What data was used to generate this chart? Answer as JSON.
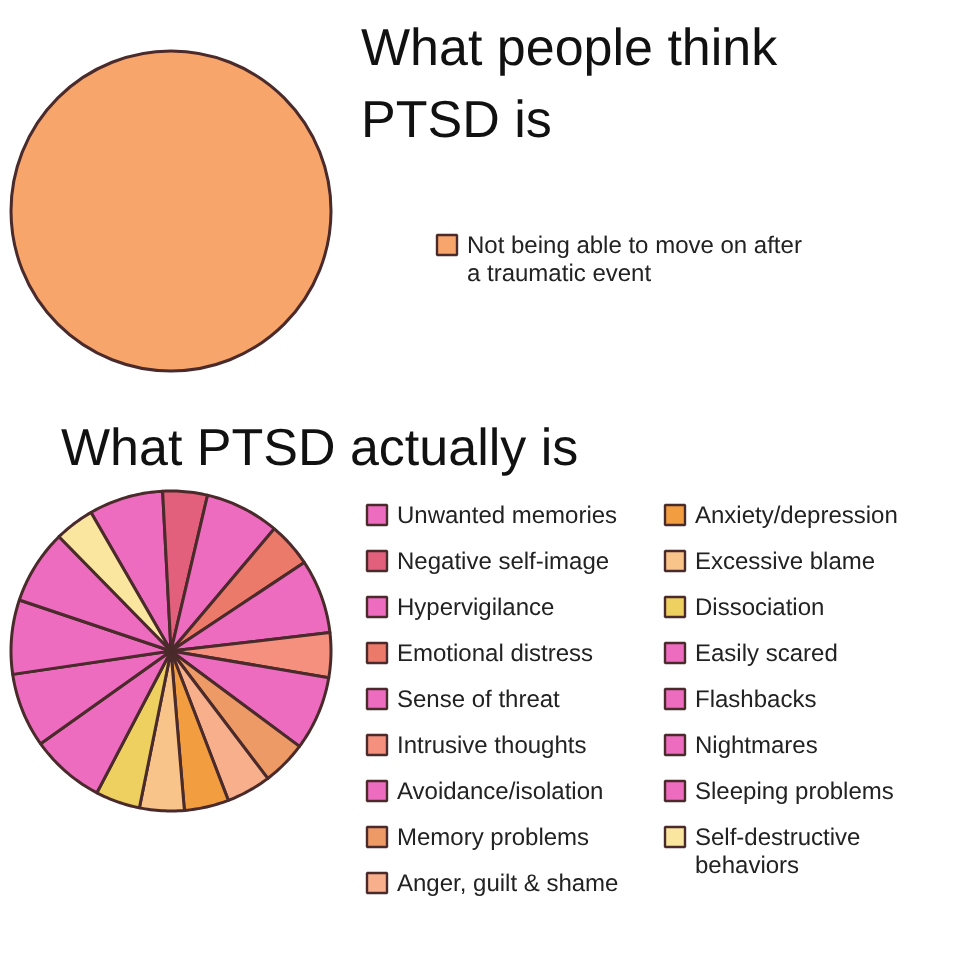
{
  "chart_data": [
    {
      "type": "pie",
      "title": "What people think\nPTSD is",
      "categories": [
        "Not being able to move on after\na traumatic event"
      ],
      "values": [
        100
      ],
      "colors": [
        "#f8a56c"
      ],
      "legend": "right"
    },
    {
      "type": "pie",
      "title": "What PTSD actually is",
      "categories": [
        "Unwanted memories",
        "Negative self-image",
        "Hypervigilance",
        "Emotional distress",
        "Sense of threat",
        "Intrusive thoughts",
        "Avoidance/isolation",
        "Memory problems",
        "Anger, guilt & shame",
        "Anxiety/depression",
        "Excessive blame",
        "Dissociation",
        "Easily scared",
        "Flashbacks",
        "Nightmares",
        "Sleeping problems",
        "Self-destructive\nbehaviors"
      ],
      "values": [
        7.5,
        4.5,
        7.5,
        4.5,
        7.5,
        4.5,
        7.5,
        4.5,
        4.5,
        4.5,
        4.5,
        4.5,
        7.5,
        7.5,
        7.5,
        7.5,
        4
      ],
      "colors": [
        "#ee6cc0",
        "#e3607c",
        "#ee6cc0",
        "#ec7a6a",
        "#ee6cc0",
        "#f5907e",
        "#ee6cc0",
        "#ee9a66",
        "#f8b08c",
        "#f29e40",
        "#f9c48a",
        "#eed060",
        "#ee6cc0",
        "#ee6cc0",
        "#ee6cc0",
        "#ee6cc0",
        "#fbe6a0"
      ],
      "legend": "right"
    }
  ]
}
